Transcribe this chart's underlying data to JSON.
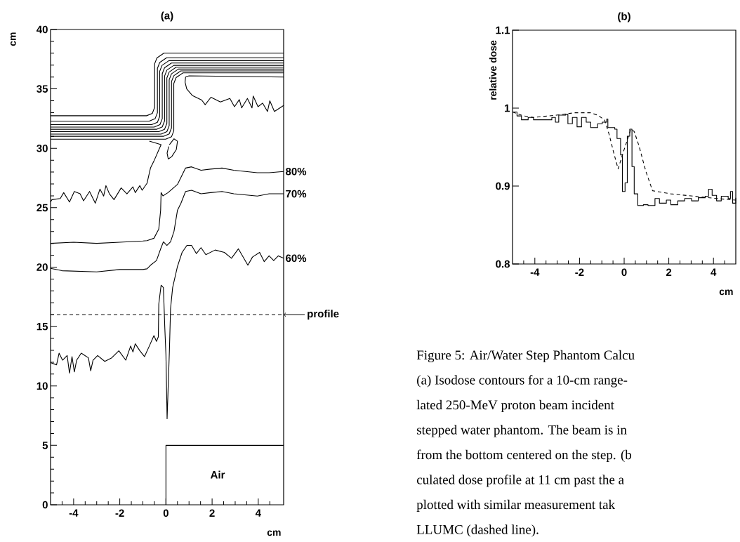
{
  "chart_data": [
    {
      "type": "line",
      "title": "(a)",
      "xlabel": "cm",
      "ylabel": "cm",
      "xlim": [
        -5,
        5.1
      ],
      "ylim": [
        0,
        40
      ],
      "xticks": [
        {
          "value": -4.5,
          "label": null
        },
        -4,
        {
          "value": -3.5,
          "label": null
        },
        {
          "value": -3,
          "label": null
        },
        {
          "value": -2.5,
          "label": null
        },
        -2,
        {
          "value": -1.5,
          "label": null
        },
        {
          "value": -1,
          "label": null
        },
        {
          "value": -0.5,
          "label": null
        },
        0,
        {
          "value": 0.5,
          "label": null
        },
        {
          "value": 1,
          "label": null
        },
        {
          "value": 1.5,
          "label": null
        },
        2,
        {
          "value": 2.5,
          "label": null
        },
        {
          "value": 3,
          "label": null
        },
        {
          "value": 3.5,
          "label": null
        },
        4,
        {
          "value": 4.5,
          "label": null
        }
      ],
      "yticks": [
        0,
        {
          "value": 1,
          "label": null
        },
        {
          "value": 2,
          "label": null
        },
        {
          "value": 3,
          "label": null
        },
        {
          "value": 4,
          "label": null
        },
        5,
        {
          "value": 6,
          "label": null
        },
        {
          "value": 7,
          "label": null
        },
        {
          "value": 8,
          "label": null
        },
        {
          "value": 9,
          "label": null
        },
        10,
        {
          "value": 11,
          "label": null
        },
        {
          "value": 12,
          "label": null
        },
        {
          "value": 13,
          "label": null
        },
        {
          "value": 14,
          "label": null
        },
        15,
        {
          "value": 16,
          "label": null
        },
        {
          "value": 17,
          "label": null
        },
        {
          "value": 18,
          "label": null
        },
        {
          "value": 19,
          "label": null
        },
        20,
        {
          "value": 21,
          "label": null
        },
        {
          "value": 22,
          "label": null
        },
        {
          "value": 23,
          "label": null
        },
        {
          "value": 24,
          "label": null
        },
        25,
        {
          "value": 26,
          "label": null
        },
        {
          "value": 27,
          "label": null
        },
        {
          "value": 28,
          "label": null
        },
        {
          "value": 29,
          "label": null
        },
        30,
        {
          "value": 31,
          "label": null
        },
        {
          "value": 32,
          "label": null
        },
        {
          "value": 33,
          "label": null
        },
        {
          "value": 34,
          "label": null
        },
        35,
        {
          "value": 36,
          "label": null
        },
        {
          "value": 37,
          "label": null
        },
        {
          "value": 38,
          "label": null
        },
        {
          "value": 39,
          "label": null
        },
        40
      ],
      "ref_lines": [
        {
          "axis": "y",
          "value": 16,
          "label": "profile",
          "color": "#000000",
          "line_style": "dashed"
        }
      ],
      "annotations": [
        "Air"
      ],
      "series": [
        {
          "color": "#000000",
          "x": [
            -5,
            -0.84,
            -0.59,
            -0.49,
            -0.49,
            -0.39,
            -0.09,
            5.1
          ],
          "values": [
            32.74,
            32.74,
            32.94,
            33.44,
            37.11,
            37.61,
            38.01,
            38.01
          ]
        },
        {
          "color": "#000000",
          "x": [
            -5,
            -0.72,
            -0.47,
            -0.37,
            -0.37,
            -0.27,
            0.03,
            5.1
          ],
          "values": [
            32.29,
            32.29,
            32.49,
            32.99,
            36.72,
            37.22,
            37.62,
            37.62
          ]
        },
        {
          "color": "#000000",
          "x": [
            -5,
            -0.62,
            -0.37,
            -0.27,
            -0.27,
            -0.17,
            0.13,
            5.1
          ],
          "values": [
            31.99,
            31.99,
            32.19,
            32.69,
            36.48,
            36.98,
            37.38,
            37.38
          ]
        },
        {
          "color": "#000000",
          "x": [
            -5,
            -0.51,
            -0.26,
            -0.16,
            -0.16,
            -0.06,
            0.24,
            5.1
          ],
          "values": [
            31.79,
            31.79,
            31.99,
            32.49,
            36.28,
            36.78,
            37.18,
            37.18
          ]
        },
        {
          "color": "#000000",
          "x": [
            -5,
            -0.41,
            -0.16,
            -0.06,
            -0.06,
            0.04,
            0.34,
            5.1
          ],
          "values": [
            31.6,
            31.6,
            31.8,
            32.3,
            36.08,
            36.58,
            36.98,
            36.98
          ]
        },
        {
          "color": "#000000",
          "x": [
            -5,
            -0.31,
            -0.06,
            0.04,
            0.04,
            0.14,
            0.44,
            5.1
          ],
          "values": [
            31.4,
            31.4,
            31.6,
            32.1,
            35.92,
            36.42,
            36.82,
            36.82
          ]
        },
        {
          "color": "#000000",
          "x": [
            -5,
            -0.21,
            0.04,
            0.14,
            0.14,
            0.24,
            0.54,
            5.1
          ],
          "values": [
            31.2,
            31.2,
            31.4,
            31.9,
            35.77,
            36.27,
            36.67,
            36.67
          ]
        },
        {
          "color": "#000000",
          "x": [
            -5,
            -0.11,
            0.14,
            0.24,
            0.24,
            0.34,
            0.64,
            5.1
          ],
          "values": [
            31.01,
            31.01,
            31.21,
            31.71,
            35.61,
            36.11,
            36.51,
            36.51
          ]
        },
        {
          "color": "#000000",
          "x": [
            -5,
            -0.01,
            0.24,
            0.34,
            0.34,
            0.44,
            0.74,
            5.1
          ],
          "values": [
            30.77,
            30.77,
            30.97,
            31.47,
            35.45,
            35.95,
            36.35,
            36.35
          ]
        },
        {
          "color": "#000000",
          "x": [
            5.1,
            1.0,
            0.85,
            0.83,
            0.9,
            1.14,
            1.55,
            1.7,
            1.95,
            2.36,
            2.77,
            2.97,
            3.18,
            3.28,
            3.53,
            3.73,
            3.78,
            3.99,
            4.19,
            4.4,
            4.5,
            4.7,
            5.1
          ],
          "values": [
            36.0,
            36.1,
            36.0,
            35.56,
            35.0,
            34.45,
            34.06,
            33.67,
            34.3,
            33.9,
            34.2,
            33.5,
            34.1,
            33.4,
            34.2,
            33.4,
            34.4,
            33.5,
            33.8,
            33.1,
            34.0,
            33.1,
            33.6
          ]
        },
        {
          "color": "#000000",
          "x": [
            -5,
            -4.94,
            -4.58,
            -4.43,
            -4.18,
            -3.97,
            -3.72,
            -3.57,
            -3.31,
            -3.06,
            -2.86,
            -2.7,
            -2.6,
            -2.45,
            -2.25,
            -1.94,
            -1.69,
            -1.43,
            -1.33,
            -1.13,
            -1.03,
            -0.82,
            -0.67,
            -0.52,
            -0.21,
            -0.72
          ],
          "values": [
            25.5,
            25.68,
            25.78,
            26.27,
            25.48,
            26.37,
            26.17,
            25.58,
            26.37,
            25.38,
            26.57,
            25.98,
            26.86,
            26.17,
            25.68,
            26.67,
            26.17,
            26.76,
            26.27,
            26.86,
            26.47,
            27.06,
            28.34,
            28.93,
            30.31,
            30.61
          ]
        },
        {
          "name": "80%",
          "color": "#000000",
          "x": [
            -5,
            -4,
            -3,
            -2,
            -1,
            -0.82,
            -0.52,
            -0.31,
            -0.23,
            -0.21,
            -0.13,
            0.09,
            0.5,
            0.85,
            1.11,
            1.52,
            1.93,
            2.43,
            2.94,
            3.96,
            4.47,
            5.1
          ],
          "values": [
            22.0,
            22.1,
            22.0,
            22.1,
            22.2,
            22.23,
            22.43,
            23.21,
            24.79,
            26.27,
            26.0,
            26.27,
            26.96,
            28.34,
            28.44,
            28.15,
            28.25,
            28.34,
            28.15,
            27.95,
            27.95,
            28.05
          ]
        },
        {
          "name": "70%",
          "color": "#000000",
          "x": [
            -5,
            -4.5,
            -3,
            -2,
            -1,
            -0.82,
            -0.67,
            -0.41,
            -0.21,
            -0.11,
            0.04,
            0.2,
            0.35,
            0.5,
            0.65,
            0.85,
            1.11,
            1.52,
            1.93,
            2.43,
            2.94,
            3.96,
            4.47,
            5.1
          ],
          "values": [
            19.9,
            19.7,
            19.6,
            19.8,
            19.8,
            19.86,
            20.16,
            20.55,
            21.64,
            22.13,
            21.83,
            22.13,
            23.02,
            24.79,
            25.38,
            26.37,
            26.47,
            26.17,
            26.27,
            26.37,
            26.17,
            25.98,
            26.17,
            26.17
          ]
        },
        {
          "name": "60%",
          "color": "#000000",
          "x": [
            -5,
            -4.74,
            -4.63,
            -4.48,
            -4.28,
            -4.18,
            -4.07,
            -3.97,
            -3.87,
            -3.67,
            -3.36,
            -3.26,
            -3.16,
            -2.96,
            -2.65,
            -2.35,
            -2.04,
            -1.74,
            -1.53,
            -1.43,
            -1.33,
            -1.13,
            -0.93,
            -0.72,
            -0.52,
            -0.41,
            -0.33,
            -0.31,
            -0.21,
            -0.11,
            -0.05,
            0.0,
            0.05,
            0.15,
            0.2,
            0.29,
            0.5,
            0.7,
            0.91,
            1.11,
            1.32,
            1.52,
            1.73,
            2.13,
            2.53,
            2.84,
            3.14,
            3.55,
            3.75,
            4.06,
            4.26,
            4.47,
            4.67,
            4.87,
            5.1
          ],
          "values": [
            11.97,
            11.78,
            12.76,
            12.17,
            12.56,
            11.08,
            12.47,
            11.18,
            12.17,
            12.76,
            12.37,
            11.28,
            12.17,
            12.56,
            12.07,
            12.37,
            12.96,
            12.17,
            13.36,
            12.86,
            13.55,
            12.96,
            12.47,
            13.36,
            14.24,
            13.75,
            14.14,
            16.9,
            18.48,
            18.28,
            14.93,
            12.6,
            7.24,
            12.96,
            16.51,
            18.28,
            20.06,
            21.24,
            21.83,
            21.83,
            21.14,
            21.64,
            21.05,
            21.44,
            21.24,
            20.75,
            21.54,
            20.16,
            20.85,
            21.24,
            20.46,
            20.95,
            20.55,
            20.95,
            20.75
          ]
        },
        {
          "color": "#000000",
          "x": [
            0,
            0,
            5.1
          ],
          "values": [
            0,
            5,
            5
          ]
        },
        {
          "color": "#000000",
          "x": [
            0.15,
            0.35,
            0.5,
            0.45,
            0.25,
            0.1,
            0.05,
            0.12
          ],
          "values": [
            30.3,
            30.8,
            30.6,
            29.9,
            29.3,
            29.1,
            29.6,
            30.15
          ]
        }
      ]
    },
    {
      "type": "line",
      "title": "(b)",
      "xlabel": "cm",
      "ylabel": "relative dose",
      "xlim": [
        -5,
        5
      ],
      "ylim": [
        0.8,
        1.1
      ],
      "xticks": [
        {
          "value": -4.5,
          "label": null
        },
        -4,
        {
          "value": -3.5,
          "label": null
        },
        {
          "value": -3,
          "label": null
        },
        {
          "value": -2.5,
          "label": null
        },
        -2,
        {
          "value": -1.5,
          "label": null
        },
        {
          "value": -1,
          "label": null
        },
        {
          "value": -0.5,
          "label": null
        },
        0,
        {
          "value": 0.5,
          "label": null
        },
        {
          "value": 1,
          "label": null
        },
        {
          "value": 1.5,
          "label": null
        },
        2,
        {
          "value": 2.5,
          "label": null
        },
        {
          "value": 3,
          "label": null
        },
        {
          "value": 3.5,
          "label": null
        },
        4,
        {
          "value": 4.5,
          "label": null
        }
      ],
      "yticks": [
        0.8,
        0.9,
        1,
        1.1
      ],
      "annotations": [
        "Figure 5: Air/Water Step Phantom Calcu",
        "(a) Isodose contours for a 10-cm range-",
        "lated 250-MeV proton beam incident",
        "stepped water phantom. The beam is in",
        "from the bottom centered on the step. (b",
        "culated dose profile at 11 cm past the a",
        "plotted with similar measurement tak",
        "LLUMC (dashed line)."
      ],
      "series": [
        {
          "type": "step",
          "color": "#000000",
          "x": [
            -5,
            -4.8,
            -4.6,
            -4.3,
            -4.06,
            -3.65,
            -3.24,
            -3.08,
            -2.93,
            -2.62,
            -2.52,
            -2.32,
            -2.11,
            -1.91,
            -1.7,
            -1.5,
            -1.19,
            -0.98,
            -0.78,
            -0.73,
            -0.42,
            -0.32,
            -0.16,
            -0.08,
            0.04,
            0.14,
            0.25,
            0.35,
            0.45,
            0.61,
            0.86,
            1.07,
            1.38,
            1.58,
            1.89,
            2.09,
            2.4,
            2.71,
            3.02,
            3.32,
            3.63,
            3.78,
            3.94,
            4.14,
            4.35,
            4.66,
            4.76,
            4.86,
            5
          ],
          "values": [
            0.995,
            0.99,
            0.985,
            0.988,
            0.985,
            0.985,
            0.988,
            0.982,
            0.991,
            0.992,
            0.98,
            0.988,
            0.976,
            0.988,
            0.982,
            0.975,
            0.98,
            0.982,
            0.986,
            0.975,
            0.973,
            0.961,
            0.94,
            0.893,
            0.904,
            0.964,
            0.973,
            0.925,
            0.89,
            0.875,
            0.876,
            0.875,
            0.884,
            0.878,
            0.882,
            0.876,
            0.881,
            0.884,
            0.881,
            0.885,
            0.887,
            0.896,
            0.888,
            0.881,
            0.887,
            0.884,
            0.893,
            0.878,
            0.885
          ]
        },
        {
          "type": "line",
          "line_style": "dashed",
          "color": "#000000",
          "x": [
            -5,
            -4.5,
            -4.06,
            -3.03,
            -2.22,
            -1.5,
            -1.19,
            -0.88,
            -0.68,
            -0.47,
            -0.27,
            -0.01,
            0.3,
            0.45,
            0.66,
            0.97,
            1.27,
            2.09,
            3.12,
            4.14,
            5
          ],
          "values": [
            0.995,
            0.99,
            0.988,
            0.991,
            0.994,
            0.994,
            0.991,
            0.985,
            0.967,
            0.943,
            0.922,
            0.946,
            0.973,
            0.97,
            0.952,
            0.919,
            0.894,
            0.89,
            0.887,
            0.884,
            0.882
          ]
        }
      ]
    }
  ]
}
